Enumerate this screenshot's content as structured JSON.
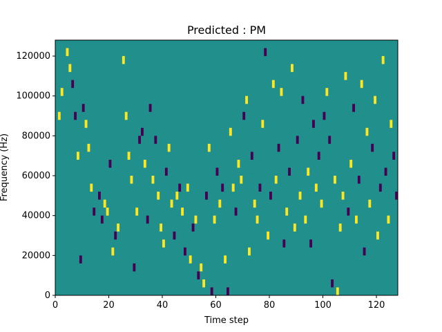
{
  "chart_data": {
    "type": "heatmap",
    "title": "Predicted : PM",
    "xlabel": "Time step",
    "ylabel": "Frequency (Hz)",
    "xlim": [
      0,
      128
    ],
    "ylim": [
      0,
      128000
    ],
    "xticks": [
      0,
      20,
      40,
      60,
      80,
      100,
      120
    ],
    "yticks": [
      0,
      20000,
      40000,
      60000,
      80000,
      100000,
      120000
    ],
    "grid": false,
    "colormap": "viridis",
    "colors": {
      "background": "#21908d",
      "high": "#fde725",
      "low": "#440154"
    },
    "cell_size": {
      "time_steps": 1,
      "frequency_hz": 4000
    },
    "cells": [
      [
        1,
        22,
        "high"
      ],
      [
        2,
        25,
        "high"
      ],
      [
        4,
        30,
        "high"
      ],
      [
        5,
        28,
        "high"
      ],
      [
        6,
        26,
        "low"
      ],
      [
        7,
        22,
        "low"
      ],
      [
        8,
        17,
        "high"
      ],
      [
        9,
        4,
        "low"
      ],
      [
        10,
        23,
        "low"
      ],
      [
        11,
        21,
        "high"
      ],
      [
        12,
        18,
        "high"
      ],
      [
        13,
        13,
        "high"
      ],
      [
        14,
        10,
        "low"
      ],
      [
        16,
        12,
        "low"
      ],
      [
        17,
        9,
        "low"
      ],
      [
        18,
        11,
        "high"
      ],
      [
        19,
        10,
        "high"
      ],
      [
        20,
        16,
        "low"
      ],
      [
        21,
        5,
        "high"
      ],
      [
        22,
        7,
        "low"
      ],
      [
        23,
        8,
        "high"
      ],
      [
        25,
        29,
        "high"
      ],
      [
        26,
        22,
        "high"
      ],
      [
        27,
        17,
        "high"
      ],
      [
        28,
        14,
        "high"
      ],
      [
        29,
        3,
        "low"
      ],
      [
        30,
        10,
        "high"
      ],
      [
        31,
        19,
        "low"
      ],
      [
        32,
        20,
        "low"
      ],
      [
        33,
        16,
        "high"
      ],
      [
        34,
        9,
        "low"
      ],
      [
        35,
        23,
        "low"
      ],
      [
        36,
        14,
        "high"
      ],
      [
        37,
        19,
        "low"
      ],
      [
        38,
        12,
        "high"
      ],
      [
        39,
        8,
        "high"
      ],
      [
        40,
        6,
        "high"
      ],
      [
        41,
        15,
        "low"
      ],
      [
        42,
        18,
        "high"
      ],
      [
        43,
        11,
        "high"
      ],
      [
        44,
        7,
        "low"
      ],
      [
        45,
        12,
        "high"
      ],
      [
        46,
        13,
        "low"
      ],
      [
        47,
        10,
        "high"
      ],
      [
        48,
        5,
        "low"
      ],
      [
        49,
        13,
        "high"
      ],
      [
        50,
        4,
        "high"
      ],
      [
        51,
        8,
        "low"
      ],
      [
        52,
        9,
        "high"
      ],
      [
        53,
        2,
        "low"
      ],
      [
        54,
        3,
        "high"
      ],
      [
        55,
        1,
        "high"
      ],
      [
        56,
        12,
        "low"
      ],
      [
        57,
        18,
        "high"
      ],
      [
        58,
        0,
        "low"
      ],
      [
        59,
        9,
        "high"
      ],
      [
        60,
        15,
        "low"
      ],
      [
        61,
        11,
        "high"
      ],
      [
        62,
        13,
        "low"
      ],
      [
        63,
        4,
        "high"
      ],
      [
        64,
        0,
        "low"
      ],
      [
        65,
        20,
        "high"
      ],
      [
        66,
        13,
        "high"
      ],
      [
        67,
        10,
        "low"
      ],
      [
        68,
        16,
        "high"
      ],
      [
        69,
        14,
        "high"
      ],
      [
        70,
        22,
        "low"
      ],
      [
        71,
        24,
        "high"
      ],
      [
        72,
        5,
        "high"
      ],
      [
        73,
        17,
        "low"
      ],
      [
        74,
        11,
        "high"
      ],
      [
        75,
        9,
        "high"
      ],
      [
        76,
        13,
        "low"
      ],
      [
        77,
        21,
        "high"
      ],
      [
        78,
        30,
        "low"
      ],
      [
        79,
        7,
        "high"
      ],
      [
        80,
        12,
        "low"
      ],
      [
        81,
        26,
        "high"
      ],
      [
        82,
        14,
        "high"
      ],
      [
        83,
        18,
        "low"
      ],
      [
        84,
        25,
        "high"
      ],
      [
        85,
        6,
        "low"
      ],
      [
        86,
        10,
        "high"
      ],
      [
        87,
        15,
        "low"
      ],
      [
        88,
        28,
        "high"
      ],
      [
        89,
        8,
        "high"
      ],
      [
        90,
        19,
        "low"
      ],
      [
        91,
        12,
        "high"
      ],
      [
        92,
        24,
        "low"
      ],
      [
        93,
        9,
        "high"
      ],
      [
        94,
        15,
        "high"
      ],
      [
        95,
        6,
        "low"
      ],
      [
        96,
        21,
        "low"
      ],
      [
        97,
        13,
        "high"
      ],
      [
        98,
        17,
        "low"
      ],
      [
        99,
        11,
        "high"
      ],
      [
        100,
        22,
        "low"
      ],
      [
        101,
        25,
        "high"
      ],
      [
        102,
        19,
        "low"
      ],
      [
        103,
        1,
        "low"
      ],
      [
        104,
        14,
        "high"
      ],
      [
        105,
        0,
        "high"
      ],
      [
        106,
        8,
        "high"
      ],
      [
        107,
        12,
        "high"
      ],
      [
        108,
        27,
        "high"
      ],
      [
        109,
        10,
        "low"
      ],
      [
        110,
        16,
        "high"
      ],
      [
        111,
        23,
        "low"
      ],
      [
        112,
        9,
        "high"
      ],
      [
        113,
        14,
        "low"
      ],
      [
        114,
        26,
        "high"
      ],
      [
        115,
        5,
        "low"
      ],
      [
        116,
        20,
        "high"
      ],
      [
        117,
        11,
        "high"
      ],
      [
        118,
        18,
        "low"
      ],
      [
        119,
        24,
        "high"
      ],
      [
        120,
        7,
        "high"
      ],
      [
        121,
        13,
        "low"
      ],
      [
        122,
        29,
        "high"
      ],
      [
        123,
        15,
        "low"
      ],
      [
        124,
        9,
        "high"
      ],
      [
        125,
        21,
        "high"
      ],
      [
        126,
        17,
        "low"
      ],
      [
        127,
        12,
        "low"
      ]
    ]
  }
}
